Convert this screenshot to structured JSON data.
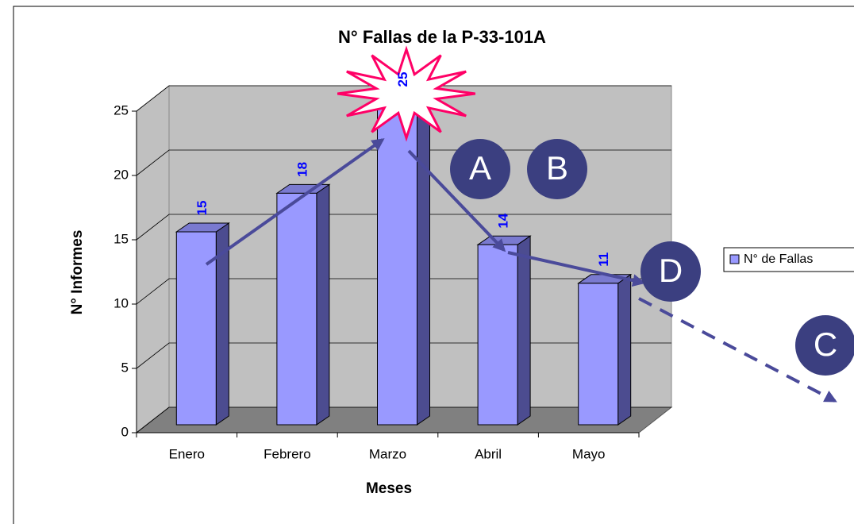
{
  "chart_data": {
    "type": "bar3d",
    "title": "N° Fallas de la P-33-101A",
    "x_label": "Meses",
    "y_label": "N° Informes",
    "categories": [
      "Enero",
      "Febrero",
      "Marzo",
      "Abril",
      "Mayo"
    ],
    "series": [
      {
        "name": "N° de Fallas",
        "color": "#9999ff",
        "values": [
          15,
          18,
          25,
          14,
          11
        ]
      }
    ],
    "ylim": [
      0,
      25
    ],
    "yticks": [
      0,
      5,
      10,
      15,
      20,
      25
    ],
    "grid": true,
    "legend": "right",
    "annotations": [
      "A",
      "B",
      "C",
      "D"
    ]
  }
}
